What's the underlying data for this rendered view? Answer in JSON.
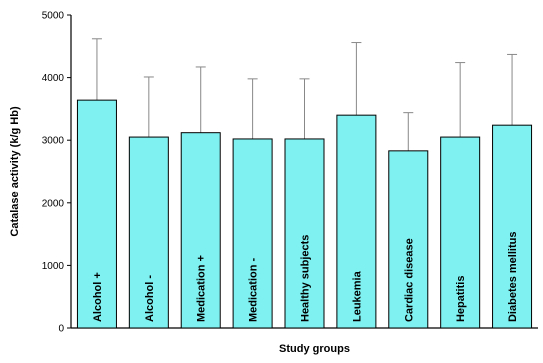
{
  "chart_data": {
    "type": "bar",
    "title": "",
    "xlabel": "Study groups",
    "ylabel": "Catalase activity (k/g Hb)",
    "ylim": [
      0,
      5000
    ],
    "yticks": [
      0,
      1000,
      2000,
      3000,
      4000,
      5000
    ],
    "grid": false,
    "legend": "none",
    "bar_color": "#7ff1f1",
    "error_bar_color": "#888888",
    "categories": [
      "Alcohol +",
      "Alcohol -",
      "Medication +",
      "Medication -",
      "Healthy subjects",
      "Leukemia",
      "Cardiac disease",
      "Hepatitis",
      "Diabetes mellitus"
    ],
    "values": [
      3640,
      3050,
      3120,
      3020,
      3020,
      3400,
      2830,
      3050,
      3240
    ],
    "error_upper": [
      4620,
      4010,
      4170,
      3980,
      3980,
      4560,
      3440,
      4240,
      4370
    ]
  }
}
